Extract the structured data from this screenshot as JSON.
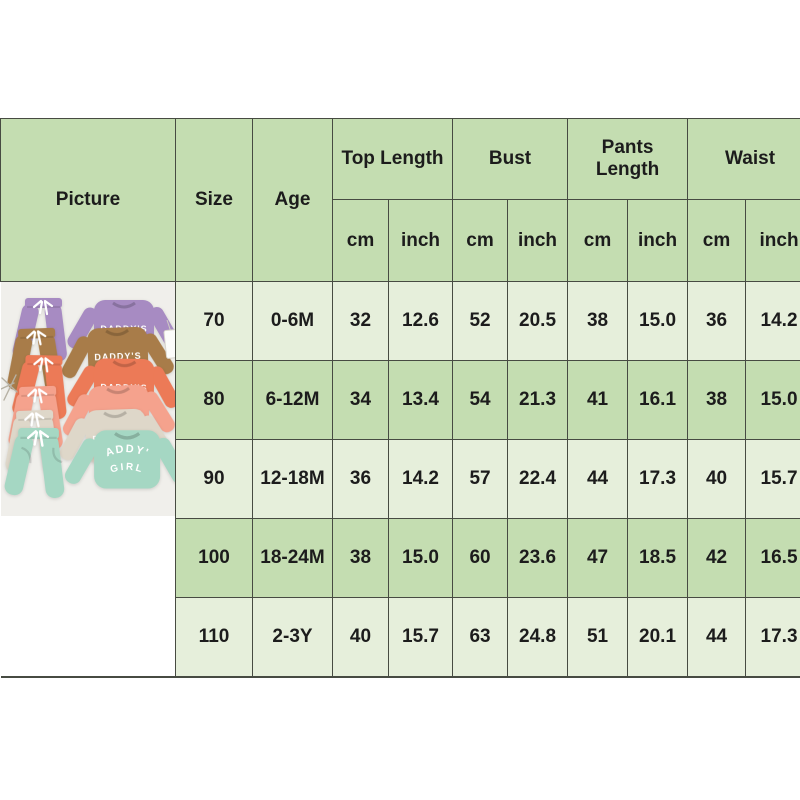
{
  "table": {
    "header": {
      "picture": "Picture",
      "size": "Size",
      "age": "Age",
      "groups": [
        {
          "label": "Top Length"
        },
        {
          "label": "Bust"
        },
        {
          "label": "Pants Length"
        },
        {
          "label": "Waist"
        }
      ],
      "unit_cm": "cm",
      "unit_inch": "inch"
    },
    "rows": [
      {
        "size": "70",
        "age": "0-6M",
        "top_length_cm": "32",
        "top_length_inch": "12.6",
        "bust_cm": "52",
        "bust_inch": "20.5",
        "pants_length_cm": "38",
        "pants_length_inch": "15.0",
        "waist_cm": "36",
        "waist_inch": "14.2"
      },
      {
        "size": "80",
        "age": "6-12M",
        "top_length_cm": "34",
        "top_length_inch": "13.4",
        "bust_cm": "54",
        "bust_inch": "21.3",
        "pants_length_cm": "41",
        "pants_length_inch": "16.1",
        "waist_cm": "38",
        "waist_inch": "15.0"
      },
      {
        "size": "90",
        "age": "12-18M",
        "top_length_cm": "36",
        "top_length_inch": "14.2",
        "bust_cm": "57",
        "bust_inch": "22.4",
        "pants_length_cm": "44",
        "pants_length_inch": "17.3",
        "waist_cm": "40",
        "waist_inch": "15.7"
      },
      {
        "size": "100",
        "age": "18-24M",
        "top_length_cm": "38",
        "top_length_inch": "15.0",
        "bust_cm": "60",
        "bust_inch": "23.6",
        "pants_length_cm": "47",
        "pants_length_inch": "18.5",
        "waist_cm": "42",
        "waist_inch": "16.5"
      },
      {
        "size": "110",
        "age": "2-3Y",
        "top_length_cm": "40",
        "top_length_inch": "15.7",
        "bust_cm": "63",
        "bust_inch": "24.8",
        "pants_length_cm": "51",
        "pants_length_inch": "20.1",
        "waist_cm": "44",
        "waist_inch": "17.3"
      }
    ]
  },
  "picture": {
    "shirt_text_top": "DADDY'S",
    "shirt_text_bottom": "GIRL",
    "sets": [
      {
        "name": "purple",
        "color": "#a78bc2"
      },
      {
        "name": "camel",
        "color": "#a87c49"
      },
      {
        "name": "coral",
        "color": "#ec7a57"
      },
      {
        "name": "salmon",
        "color": "#f5a28d"
      },
      {
        "name": "cream",
        "color": "#ded7c9"
      },
      {
        "name": "mint",
        "color": "#a5d7c3"
      }
    ]
  },
  "colors": {
    "header_green": "#c4ddb1",
    "row_light": "#e6efdb",
    "row_dark": "#c4ddb1",
    "border": "#474b42",
    "photo_bg": "#f0efeb",
    "drawstring_white": "#ffffff",
    "shirt_text_white": "#ffffff"
  }
}
